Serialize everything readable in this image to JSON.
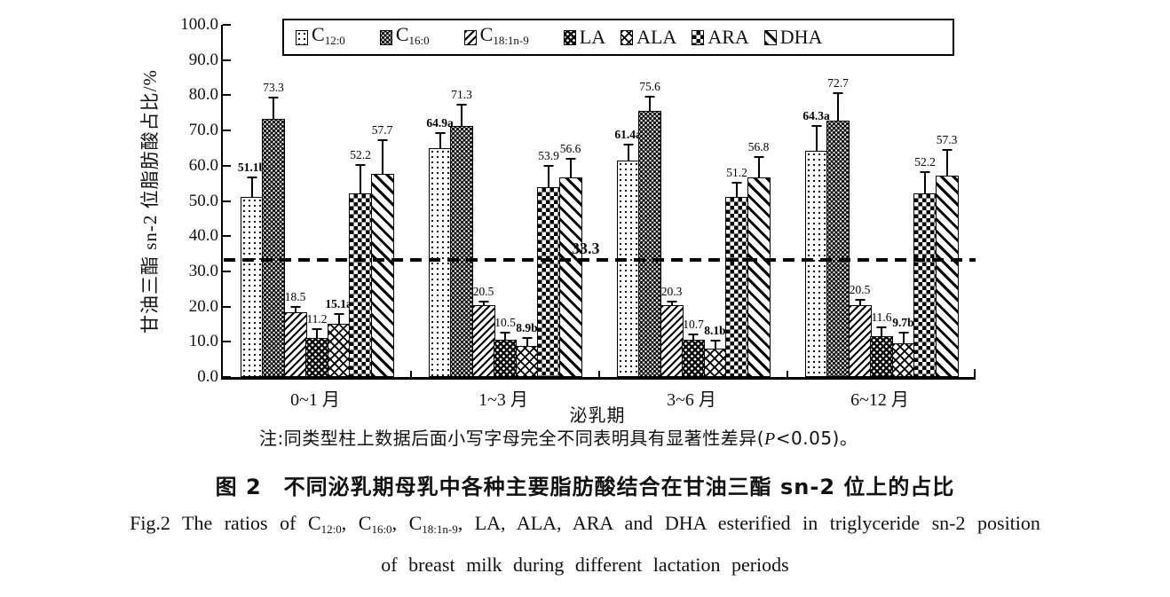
{
  "chart_data": {
    "type": "bar",
    "title_zh": "图 2　不同泌乳期母乳中各种主要脂肪酸结合在甘油三酯 sn-2 位上的占比",
    "title_en_line1_segments": [
      {
        "t": "Fig.2  The ratios of "
      },
      {
        "t": "C"
      },
      {
        "t": "12:0",
        "sub": true
      },
      {
        "t": ", "
      },
      {
        "t": "C"
      },
      {
        "t": "16:0",
        "sub": true
      },
      {
        "t": ", "
      },
      {
        "t": "C"
      },
      {
        "t": "18:1n-9",
        "sub": true
      },
      {
        "t": ", LA, ALA, ARA and DHA esterified in triglyceride sn-2 position"
      }
    ],
    "title_en_line2": "of breast milk during different lactation periods",
    "xlabel": "泌乳期",
    "ylabel": "甘油三酯 sn-2 位脂肪酸占比/%",
    "ylim": [
      0,
      100
    ],
    "ytick_labels": [
      "0.0",
      "10.0",
      "20.0",
      "30.0",
      "40.0",
      "50.0",
      "60.0",
      "70.0",
      "80.0",
      "90.0",
      "100.0"
    ],
    "categories": [
      "0~1 月",
      "1~3 月",
      "3~6 月",
      "6~12 月"
    ],
    "reference_line": {
      "value": 33.3,
      "label": "33.3",
      "style": "dashed"
    },
    "series": [
      {
        "name": "C12:0",
        "display": {
          "base": "C",
          "sub": "12:0"
        },
        "pattern": "dots-light",
        "values": [
          51.1,
          64.9,
          61.4,
          64.3
        ],
        "labels": [
          "51.1b",
          "64.9a",
          "61.4a",
          "64.3a"
        ],
        "errors": [
          6.0,
          5.0,
          5.0,
          7.6
        ]
      },
      {
        "name": "C16:0",
        "display": {
          "base": "C",
          "sub": "16:0"
        },
        "pattern": "dots-dense",
        "values": [
          73.3,
          71.3,
          75.6,
          72.7
        ],
        "labels": [
          "73.3",
          "71.3",
          "75.6",
          "72.7"
        ],
        "errors": [
          6.5,
          6.5,
          4.5,
          8.3
        ]
      },
      {
        "name": "C18:1n-9",
        "display": {
          "base": "C",
          "sub": "18:1n-9"
        },
        "pattern": "diag-thin",
        "values": [
          18.5,
          20.5,
          20.3,
          20.5
        ],
        "labels": [
          "18.5",
          "20.5",
          "20.3",
          "20.5"
        ],
        "errors": [
          1.8,
          1.5,
          1.7,
          2.0
        ]
      },
      {
        "name": "LA",
        "display": {
          "base": "LA",
          "sub": ""
        },
        "pattern": "black-dots",
        "values": [
          11.2,
          10.5,
          10.7,
          11.6
        ],
        "labels": [
          "11.2",
          "10.5",
          "10.7",
          "11.6"
        ],
        "errors": [
          2.8,
          2.6,
          2.0,
          2.9
        ]
      },
      {
        "name": "ALA",
        "display": {
          "base": "ALA",
          "sub": ""
        },
        "pattern": "zigzag",
        "values": [
          15.1,
          8.9,
          8.1,
          9.7
        ],
        "labels": [
          "15.1a",
          "8.9b",
          "8.1b",
          "9.7b"
        ],
        "errors": [
          3.3,
          2.6,
          2.7,
          3.4
        ]
      },
      {
        "name": "ARA",
        "display": {
          "base": "ARA",
          "sub": ""
        },
        "pattern": "checker",
        "values": [
          52.2,
          53.9,
          51.2,
          52.2
        ],
        "labels": [
          "52.2",
          "53.9",
          "51.2",
          "52.2"
        ],
        "errors": [
          8.5,
          6.5,
          4.4,
          6.6
        ]
      },
      {
        "name": "DHA",
        "display": {
          "base": "DHA",
          "sub": ""
        },
        "pattern": "diag-wide",
        "values": [
          57.7,
          56.6,
          56.8,
          57.3
        ],
        "labels": [
          "57.7",
          "56.6",
          "56.8",
          "57.3"
        ],
        "errors": [
          10.0,
          6.0,
          6.2,
          7.6
        ]
      }
    ]
  },
  "note": {
    "segments": [
      {
        "t": "注:同类型柱上数据后面小写字母完全不同表明具有显著性差异("
      },
      {
        "t": "P",
        "italic": true
      },
      {
        "t": "<0.05)。"
      }
    ]
  },
  "colors": {
    "ink": "#000000",
    "background": "#ffffff"
  }
}
